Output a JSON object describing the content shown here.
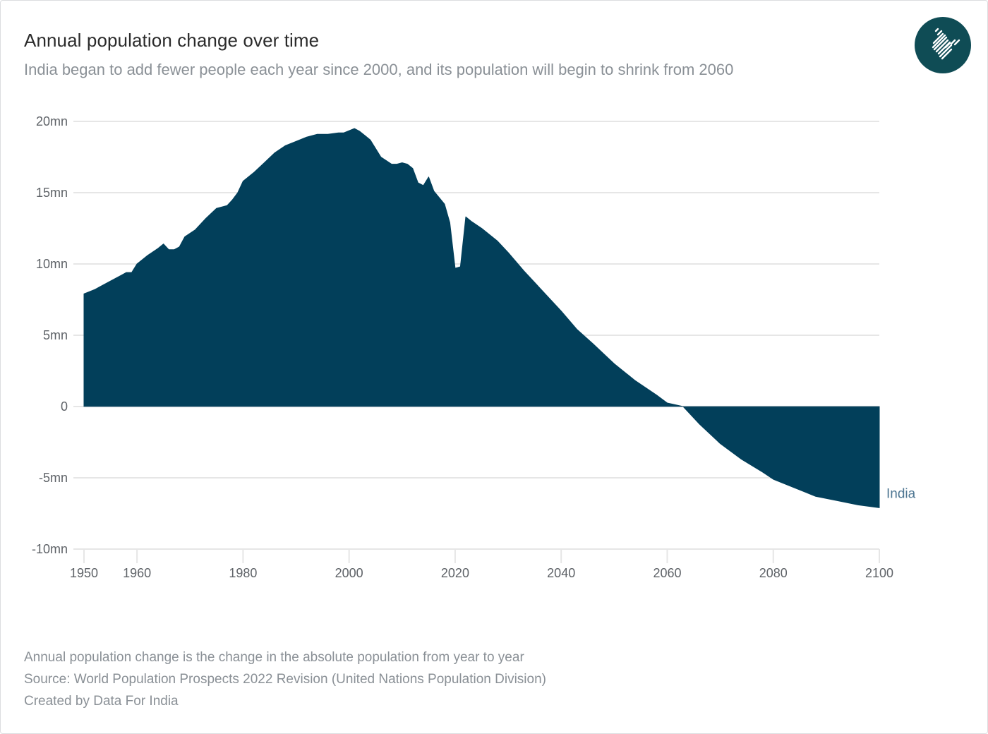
{
  "header": {
    "title": "Annual population change over time",
    "subtitle": "India began to add fewer people each year since 2000, and its population will begin to shrink from 2060",
    "logo_icon": "india-map-logo-icon"
  },
  "footer": {
    "note": "Annual population change is the change in the absolute population from year to year",
    "source": "Source: World Population Prospects 2022 Revision (United Nations Population Division)",
    "credit": "Created by Data For India"
  },
  "colors": {
    "area_fill": "#023f5a",
    "series_label": "#4f7793",
    "grid": "#e6e6e6",
    "logo_bg": "#0f4c55"
  },
  "chart_data": {
    "type": "area",
    "title": "Annual population change over time",
    "subtitle": "India began to add fewer people each year since 2000, and its population will begin to shrink from 2060",
    "xlabel": "",
    "ylabel": "",
    "xlim": [
      1950,
      2100
    ],
    "ylim": [
      -10,
      20
    ],
    "grid": true,
    "legend": "inline-right",
    "x_ticks": [
      1950,
      1960,
      1980,
      2000,
      2020,
      2040,
      2060,
      2080,
      2100
    ],
    "x_tick_labels": [
      "1950",
      "1960",
      "1980",
      "2000",
      "2020",
      "2040",
      "2060",
      "2080",
      "2100"
    ],
    "y_ticks": [
      20,
      15,
      10,
      5,
      0,
      -5,
      -10
    ],
    "y_tick_labels": [
      "20mn",
      "15mn",
      "10mn",
      "5mn",
      "0",
      "-5mn",
      "-10mn"
    ],
    "unit": "million people",
    "series": [
      {
        "name": "India",
        "x": [
          1950,
          1952,
          1953,
          1955,
          1957,
          1958,
          1959,
          1960,
          1962,
          1964,
          1965,
          1966,
          1967,
          1968,
          1969,
          1971,
          1973,
          1975,
          1977,
          1978,
          1979,
          1980,
          1982,
          1984,
          1986,
          1988,
          1990,
          1992,
          1994,
          1996,
          1998,
          1999,
          2001,
          2002,
          2003,
          2004,
          2005,
          2006,
          2008,
          2009,
          2010,
          2011,
          2012,
          2013,
          2014,
          2015,
          2016,
          2018,
          2019,
          2020,
          2021,
          2022,
          2023,
          2025,
          2028,
          2030,
          2033,
          2036,
          2040,
          2043,
          2046,
          2050,
          2054,
          2058,
          2060,
          2063,
          2066,
          2070,
          2074,
          2078,
          2080,
          2084,
          2088,
          2092,
          2096,
          2100
        ],
        "values": [
          7.9,
          8.2,
          8.4,
          8.8,
          9.2,
          9.4,
          9.4,
          10.0,
          10.6,
          11.1,
          11.4,
          11.0,
          11.0,
          11.2,
          11.9,
          12.4,
          13.2,
          13.9,
          14.1,
          14.5,
          15.0,
          15.8,
          16.4,
          17.1,
          17.8,
          18.3,
          18.6,
          18.9,
          19.1,
          19.1,
          19.2,
          19.2,
          19.5,
          19.3,
          19.0,
          18.7,
          18.1,
          17.5,
          17.0,
          17.0,
          17.1,
          17.0,
          16.7,
          15.7,
          15.5,
          16.1,
          15.1,
          14.2,
          12.9,
          9.7,
          9.8,
          13.3,
          13.0,
          12.5,
          11.6,
          10.8,
          9.5,
          8.3,
          6.7,
          5.4,
          4.4,
          3.0,
          1.8,
          0.8,
          0.25,
          0.0,
          -1.2,
          -2.6,
          -3.7,
          -4.6,
          -5.1,
          -5.7,
          -6.3,
          -6.6,
          -6.9,
          -7.1
        ]
      }
    ]
  }
}
